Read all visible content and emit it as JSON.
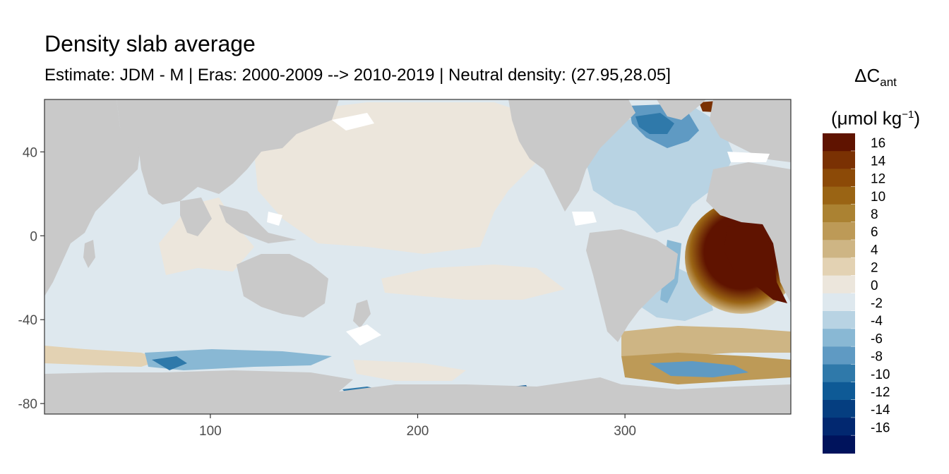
{
  "chart_data": {
    "type": "heatmap",
    "title": "Density slab average",
    "subtitle": "Estimate: JDM - M | Eras: 2000-2009 --> 2010-2019 | Neutral density: (27.95,28.05]",
    "x_axis": {
      "range": [
        20,
        380
      ],
      "ticks": [
        100,
        200,
        300
      ],
      "tick_labels": [
        "100",
        "200",
        "300"
      ]
    },
    "y_axis": {
      "range": [
        -85,
        65
      ],
      "ticks": [
        40,
        0,
        -40,
        -80
      ],
      "tick_labels": [
        "40",
        "0",
        "-40",
        "-80"
      ]
    },
    "legend": {
      "title_main": "ΔC",
      "title_sub": "ant",
      "unit_prefix": "(μmol kg",
      "unit_sup": "−1",
      "unit_suffix": ")",
      "placement": "right",
      "bins": [
        {
          "label": "16",
          "color": "#5f1300"
        },
        {
          "label": "14",
          "color": "#7a3103"
        },
        {
          "label": "12",
          "color": "#8c4a07"
        },
        {
          "label": "10",
          "color": "#9a6414"
        },
        {
          "label": "8",
          "color": "#ab8232"
        },
        {
          "label": "6",
          "color": "#bd9a57"
        },
        {
          "label": "4",
          "color": "#ceb584"
        },
        {
          "label": "2",
          "color": "#e3d2b3"
        },
        {
          "label": "0",
          "color": "#ece6dc"
        },
        {
          "label": "-2",
          "color": "#dee8ee"
        },
        {
          "label": "-4",
          "color": "#b8d3e3"
        },
        {
          "label": "-6",
          "color": "#89b8d4"
        },
        {
          "label": "-8",
          "color": "#5f9ac3"
        },
        {
          "label": "-10",
          "color": "#2f79aa"
        },
        {
          "label": "-12",
          "color": "#0e5a96"
        },
        {
          "label": "-14",
          "color": "#053e80"
        },
        {
          "label": "-16",
          "color": "#022870"
        },
        {
          "label": "",
          "color": "#00135c"
        }
      ]
    },
    "colors": {
      "land": "#c9c9c9",
      "panel_border": "#333333"
    }
  }
}
